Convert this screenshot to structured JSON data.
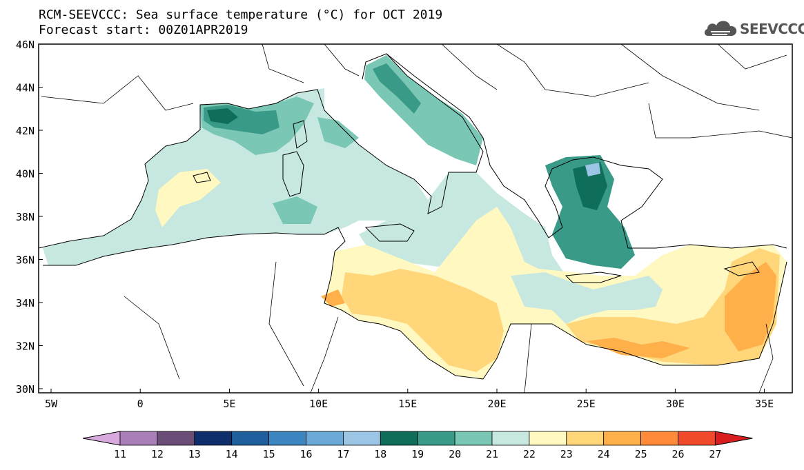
{
  "title": {
    "line1": "RCM-SEEVCCC: Sea surface temperature (°C) for OCT 2019",
    "line2": "Forecast start: 00Z01APR2019"
  },
  "logo": {
    "text": "SEEVCCC",
    "icon": "cloud-icon"
  },
  "map": {
    "type": "filled-contour map",
    "lat_labels": [
      "46N",
      "44N",
      "42N",
      "40N",
      "38N",
      "36N",
      "34N",
      "32N",
      "30N"
    ],
    "lon_labels": [
      "5W",
      "0",
      "5E",
      "10E",
      "15E",
      "20E",
      "25E",
      "30E",
      "35E"
    ],
    "land_color": "#ffffff",
    "outline_color": "#000000"
  },
  "colorbar": {
    "labels": [
      "11",
      "12",
      "13",
      "14",
      "15",
      "16",
      "17",
      "18",
      "19",
      "20",
      "21",
      "22",
      "23",
      "24",
      "25",
      "26",
      "27"
    ],
    "colors": [
      "#d7a9dc",
      "#a97fba",
      "#6b4e78",
      "#0f2e6b",
      "#1f5f9e",
      "#3d86c2",
      "#6aa9d8",
      "#9cc4e4",
      "#0e6e5a",
      "#3a9a88",
      "#79c7b4",
      "#c6e8e1",
      "#fff8c0",
      "#ffd77a",
      "#ffb04a",
      "#ff8a3a",
      "#f04a2a",
      "#d81e1e"
    ]
  }
}
